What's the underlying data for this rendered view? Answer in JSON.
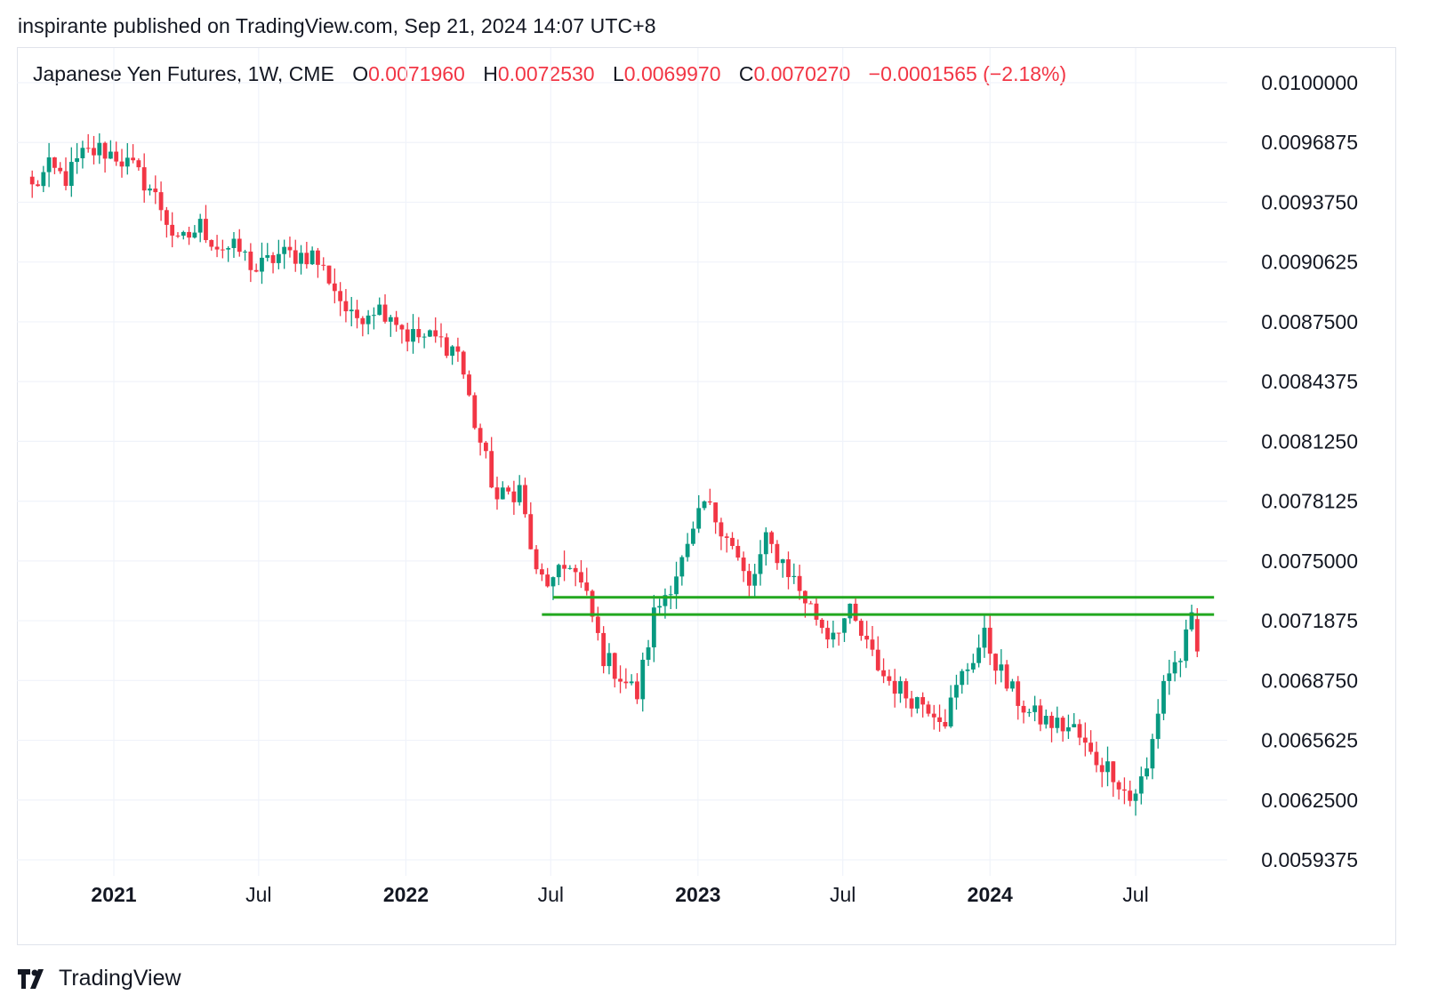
{
  "header": {
    "caption": "inspirante published on TradingView.com, Sep 21, 2024 14:07 UTC+8"
  },
  "legend": {
    "symbol": "Japanese Yen Futures, 1W, CME",
    "o_label": "O",
    "o_value": "0.0071960",
    "h_label": "H",
    "h_value": "0.0072530",
    "l_label": "L",
    "l_value": "0.0069970",
    "c_label": "C",
    "c_value": "0.0070270",
    "change": "−0.0001565 (−2.18%)"
  },
  "footer": {
    "brand": "TradingView"
  },
  "colors": {
    "up": "#089981",
    "down": "#f23645",
    "level_line": "#22a81f",
    "grid": "#f0f3fa",
    "text": "#131722"
  },
  "chart_data": {
    "type": "candlestick",
    "title": "Japanese Yen Futures, 1W, CME",
    "interval": "1W",
    "ylim": [
      0.0058,
      0.0102
    ],
    "y_ticks": [
      "0.0100000",
      "0.0096875",
      "0.0093750",
      "0.0090625",
      "0.0087500",
      "0.0084375",
      "0.0081250",
      "0.0078125",
      "0.0075000",
      "0.0071875",
      "0.0068750",
      "0.0065625",
      "0.0062500",
      "0.0059375"
    ],
    "x_ticks": [
      {
        "date": "2021-01-01",
        "label": "2021",
        "bold": true
      },
      {
        "date": "2021-07-01",
        "label": "Jul",
        "bold": false
      },
      {
        "date": "2022-01-01",
        "label": "2022",
        "bold": true
      },
      {
        "date": "2022-07-01",
        "label": "Jul",
        "bold": false
      },
      {
        "date": "2023-01-01",
        "label": "2023",
        "bold": true
      },
      {
        "date": "2023-07-01",
        "label": "Jul",
        "bold": false
      },
      {
        "date": "2024-01-01",
        "label": "2024",
        "bold": true
      },
      {
        "date": "2024-07-01",
        "label": "Jul",
        "bold": false
      }
    ],
    "first_week": "2020-09-21",
    "close_key_points": [
      [
        "2020-09-21",
        0.00945
      ],
      [
        "2020-10-12",
        0.00955
      ],
      [
        "2020-11-02",
        0.0095
      ],
      [
        "2020-11-23",
        0.00962
      ],
      [
        "2020-12-14",
        0.00965
      ],
      [
        "2021-01-04",
        0.00962
      ],
      [
        "2021-01-25",
        0.00955
      ],
      [
        "2021-02-15",
        0.00945
      ],
      [
        "2021-03-01",
        0.00935
      ],
      [
        "2021-03-22",
        0.00915
      ],
      [
        "2021-04-19",
        0.00925
      ],
      [
        "2021-05-10",
        0.00915
      ],
      [
        "2021-06-07",
        0.00912
      ],
      [
        "2021-06-28",
        0.00902
      ],
      [
        "2021-07-26",
        0.0091
      ],
      [
        "2021-09-06",
        0.0091
      ],
      [
        "2021-09-27",
        0.00898
      ],
      [
        "2021-10-25",
        0.00876
      ],
      [
        "2021-11-22",
        0.00883
      ],
      [
        "2021-12-13",
        0.0088
      ],
      [
        "2022-01-03",
        0.00868
      ],
      [
        "2022-02-07",
        0.00866
      ],
      [
        "2022-03-07",
        0.0086
      ],
      [
        "2022-03-28",
        0.00822
      ],
      [
        "2022-04-25",
        0.00782
      ],
      [
        "2022-05-23",
        0.00788
      ],
      [
        "2022-06-13",
        0.00742
      ],
      [
        "2022-07-04",
        0.00738
      ],
      [
        "2022-07-25",
        0.0075
      ],
      [
        "2022-08-15",
        0.0073
      ],
      [
        "2022-09-05",
        0.007
      ],
      [
        "2022-10-17",
        0.0068
      ],
      [
        "2022-11-07",
        0.00722
      ],
      [
        "2022-12-19",
        0.00755
      ],
      [
        "2023-01-09",
        0.0078
      ],
      [
        "2023-02-06",
        0.00765
      ],
      [
        "2023-03-06",
        0.00735
      ],
      [
        "2023-03-27",
        0.0076
      ],
      [
        "2023-04-17",
        0.0075
      ],
      [
        "2023-05-15",
        0.0073
      ],
      [
        "2023-06-12",
        0.00712
      ],
      [
        "2023-07-10",
        0.00722
      ],
      [
        "2023-07-31",
        0.00705
      ],
      [
        "2023-08-21",
        0.0069
      ],
      [
        "2023-09-18",
        0.0068
      ],
      [
        "2023-10-16",
        0.00675
      ],
      [
        "2023-11-06",
        0.00668
      ],
      [
        "2023-11-27",
        0.0069
      ],
      [
        "2023-12-25",
        0.0071
      ],
      [
        "2024-01-22",
        0.00685
      ],
      [
        "2024-02-19",
        0.0067
      ],
      [
        "2024-03-18",
        0.00665
      ],
      [
        "2024-04-15",
        0.00662
      ],
      [
        "2024-05-06",
        0.00648
      ],
      [
        "2024-06-03",
        0.0064
      ],
      [
        "2024-06-24",
        0.00625
      ],
      [
        "2024-07-15",
        0.0064
      ],
      [
        "2024-08-05",
        0.00688
      ],
      [
        "2024-08-26",
        0.007
      ],
      [
        "2024-09-09",
        0.00718
      ],
      [
        "2024-09-16",
        0.00703
      ]
    ],
    "last_candle": {
      "open": 0.007196,
      "high": 0.007253,
      "low": 0.006997,
      "close": 0.007027
    },
    "horizontal_levels": [
      {
        "value": 0.00731,
        "from": "2022-07-04",
        "to": "2024-10-07"
      },
      {
        "value": 0.00722,
        "from": "2022-06-20",
        "to": "2024-10-07"
      }
    ]
  }
}
